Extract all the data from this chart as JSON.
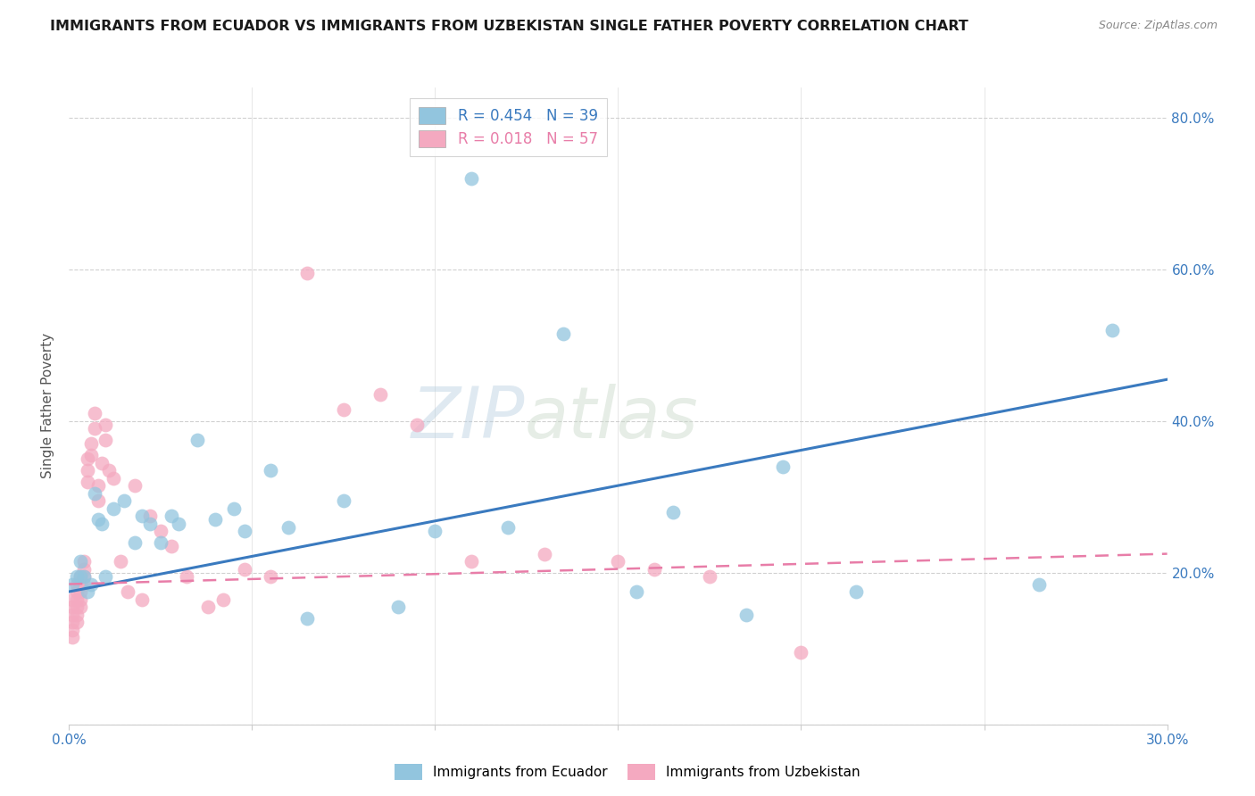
{
  "title": "IMMIGRANTS FROM ECUADOR VS IMMIGRANTS FROM UZBEKISTAN SINGLE FATHER POVERTY CORRELATION CHART",
  "source": "Source: ZipAtlas.com",
  "ylabel": "Single Father Poverty",
  "xlim": [
    0.0,
    0.3
  ],
  "ylim": [
    0.0,
    0.84
  ],
  "ecuador_color": "#92c5de",
  "uzbekistan_color": "#f4a9c0",
  "ecuador_line_color": "#3a7abf",
  "uzbekistan_line_color": "#e87da8",
  "ecuador_R": 0.454,
  "ecuador_N": 39,
  "uzbekistan_R": 0.018,
  "uzbekistan_N": 57,
  "watermark_zip": "ZIP",
  "watermark_atlas": "atlas",
  "ecuador_x": [
    0.001,
    0.002,
    0.003,
    0.003,
    0.004,
    0.005,
    0.006,
    0.007,
    0.008,
    0.009,
    0.01,
    0.012,
    0.015,
    0.018,
    0.02,
    0.022,
    0.025,
    0.028,
    0.03,
    0.035,
    0.04,
    0.045,
    0.048,
    0.055,
    0.06,
    0.065,
    0.075,
    0.09,
    0.1,
    0.11,
    0.12,
    0.135,
    0.155,
    0.165,
    0.185,
    0.195,
    0.215,
    0.265,
    0.285
  ],
  "ecuador_y": [
    0.185,
    0.195,
    0.195,
    0.215,
    0.195,
    0.175,
    0.185,
    0.305,
    0.27,
    0.265,
    0.195,
    0.285,
    0.295,
    0.24,
    0.275,
    0.265,
    0.24,
    0.275,
    0.265,
    0.375,
    0.27,
    0.285,
    0.255,
    0.335,
    0.26,
    0.14,
    0.295,
    0.155,
    0.255,
    0.72,
    0.26,
    0.515,
    0.175,
    0.28,
    0.145,
    0.34,
    0.175,
    0.185,
    0.52
  ],
  "uzbekistan_x": [
    0.001,
    0.001,
    0.001,
    0.001,
    0.001,
    0.001,
    0.002,
    0.002,
    0.002,
    0.002,
    0.002,
    0.002,
    0.003,
    0.003,
    0.003,
    0.003,
    0.003,
    0.004,
    0.004,
    0.004,
    0.004,
    0.005,
    0.005,
    0.005,
    0.006,
    0.006,
    0.007,
    0.007,
    0.008,
    0.008,
    0.009,
    0.01,
    0.01,
    0.011,
    0.012,
    0.014,
    0.016,
    0.018,
    0.02,
    0.022,
    0.025,
    0.028,
    0.032,
    0.038,
    0.042,
    0.048,
    0.055,
    0.065,
    0.075,
    0.085,
    0.095,
    0.11,
    0.13,
    0.15,
    0.16,
    0.175,
    0.2
  ],
  "uzbekistan_y": [
    0.165,
    0.155,
    0.145,
    0.135,
    0.125,
    0.115,
    0.185,
    0.175,
    0.165,
    0.155,
    0.145,
    0.135,
    0.195,
    0.185,
    0.175,
    0.165,
    0.155,
    0.215,
    0.205,
    0.195,
    0.185,
    0.35,
    0.335,
    0.32,
    0.37,
    0.355,
    0.41,
    0.39,
    0.295,
    0.315,
    0.345,
    0.395,
    0.375,
    0.335,
    0.325,
    0.215,
    0.175,
    0.315,
    0.165,
    0.275,
    0.255,
    0.235,
    0.195,
    0.155,
    0.165,
    0.205,
    0.195,
    0.595,
    0.415,
    0.435,
    0.395,
    0.215,
    0.225,
    0.215,
    0.205,
    0.195,
    0.095
  ],
  "ecuador_trend_x0": 0.0,
  "ecuador_trend_y0": 0.175,
  "ecuador_trend_x1": 0.3,
  "ecuador_trend_y1": 0.455,
  "uzbekistan_trend_x0": 0.0,
  "uzbekistan_trend_y0": 0.185,
  "uzbekistan_trend_x1": 0.3,
  "uzbekistan_trend_y1": 0.225
}
